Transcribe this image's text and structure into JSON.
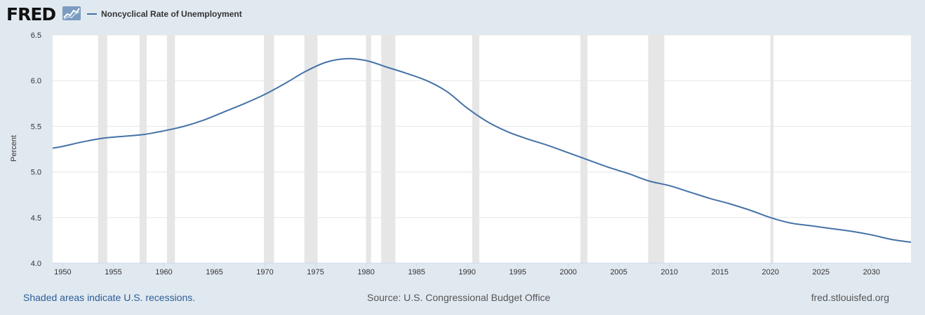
{
  "header": {
    "logo": "FRED",
    "legend_label": "Noncyclical Rate of Unemployment"
  },
  "footer": {
    "recession_note": "Shaded areas indicate U.S. recessions.",
    "source": "Source: U.S. Congressional Budget Office",
    "site": "fred.stlouisfed.org"
  },
  "colors": {
    "series": "#4572a7",
    "recession": "#e6e6e6",
    "background": "#e1e9f0",
    "plot": "#ffffff"
  },
  "chart_data": {
    "type": "line",
    "title": "",
    "xlabel": "",
    "ylabel": "Percent",
    "xlim": [
      1949.0,
      2033.9
    ],
    "ylim": [
      4.0,
      6.5
    ],
    "yticks": [
      4.0,
      4.5,
      5.0,
      5.5,
      6.0,
      6.5
    ],
    "ytick_labels": [
      "4.0",
      "4.5",
      "5.0",
      "5.5",
      "6.0",
      "6.5"
    ],
    "xticks": [
      1950,
      1955,
      1960,
      1965,
      1970,
      1975,
      1980,
      1985,
      1990,
      1995,
      2000,
      2005,
      2010,
      2015,
      2020,
      2025,
      2030
    ],
    "xtick_labels": [
      "1950",
      "1955",
      "1960",
      "1965",
      "1970",
      "1975",
      "1980",
      "1985",
      "1990",
      "1995",
      "2000",
      "2005",
      "2010",
      "2015",
      "2020",
      "2025",
      "2030"
    ],
    "grid": true,
    "legend_position": "top-left",
    "recessions": [
      [
        1953.5,
        1954.4
      ],
      [
        1957.6,
        1958.3
      ],
      [
        1960.3,
        1961.1
      ],
      [
        1969.9,
        1970.9
      ],
      [
        1973.9,
        1975.2
      ],
      [
        1980.0,
        1980.5
      ],
      [
        1981.5,
        1982.9
      ],
      [
        1990.5,
        1991.2
      ],
      [
        2001.2,
        2001.9
      ],
      [
        2007.9,
        2009.5
      ],
      [
        2020.0,
        2020.3
      ]
    ],
    "series": [
      {
        "name": "Noncyclical Rate of Unemployment",
        "x": [
          1949.0,
          1950,
          1952,
          1954,
          1956,
          1958,
          1960,
          1962,
          1964,
          1966,
          1968,
          1970,
          1972,
          1974,
          1976,
          1978,
          1980,
          1982,
          1984,
          1986,
          1988,
          1990,
          1992,
          1994,
          1996,
          1998,
          2000,
          2002,
          2004,
          2006,
          2008,
          2010,
          2012,
          2014,
          2016,
          2018,
          2020,
          2022,
          2024,
          2026,
          2028,
          2030,
          2032,
          2033.9
        ],
        "values": [
          5.26,
          5.28,
          5.33,
          5.37,
          5.39,
          5.41,
          5.45,
          5.5,
          5.57,
          5.66,
          5.75,
          5.85,
          5.97,
          6.1,
          6.2,
          6.24,
          6.22,
          6.15,
          6.08,
          6.0,
          5.88,
          5.7,
          5.55,
          5.44,
          5.36,
          5.29,
          5.21,
          5.13,
          5.05,
          4.98,
          4.9,
          4.85,
          4.78,
          4.71,
          4.65,
          4.58,
          4.5,
          4.44,
          4.41,
          4.38,
          4.35,
          4.31,
          4.26,
          4.23
        ]
      }
    ]
  }
}
